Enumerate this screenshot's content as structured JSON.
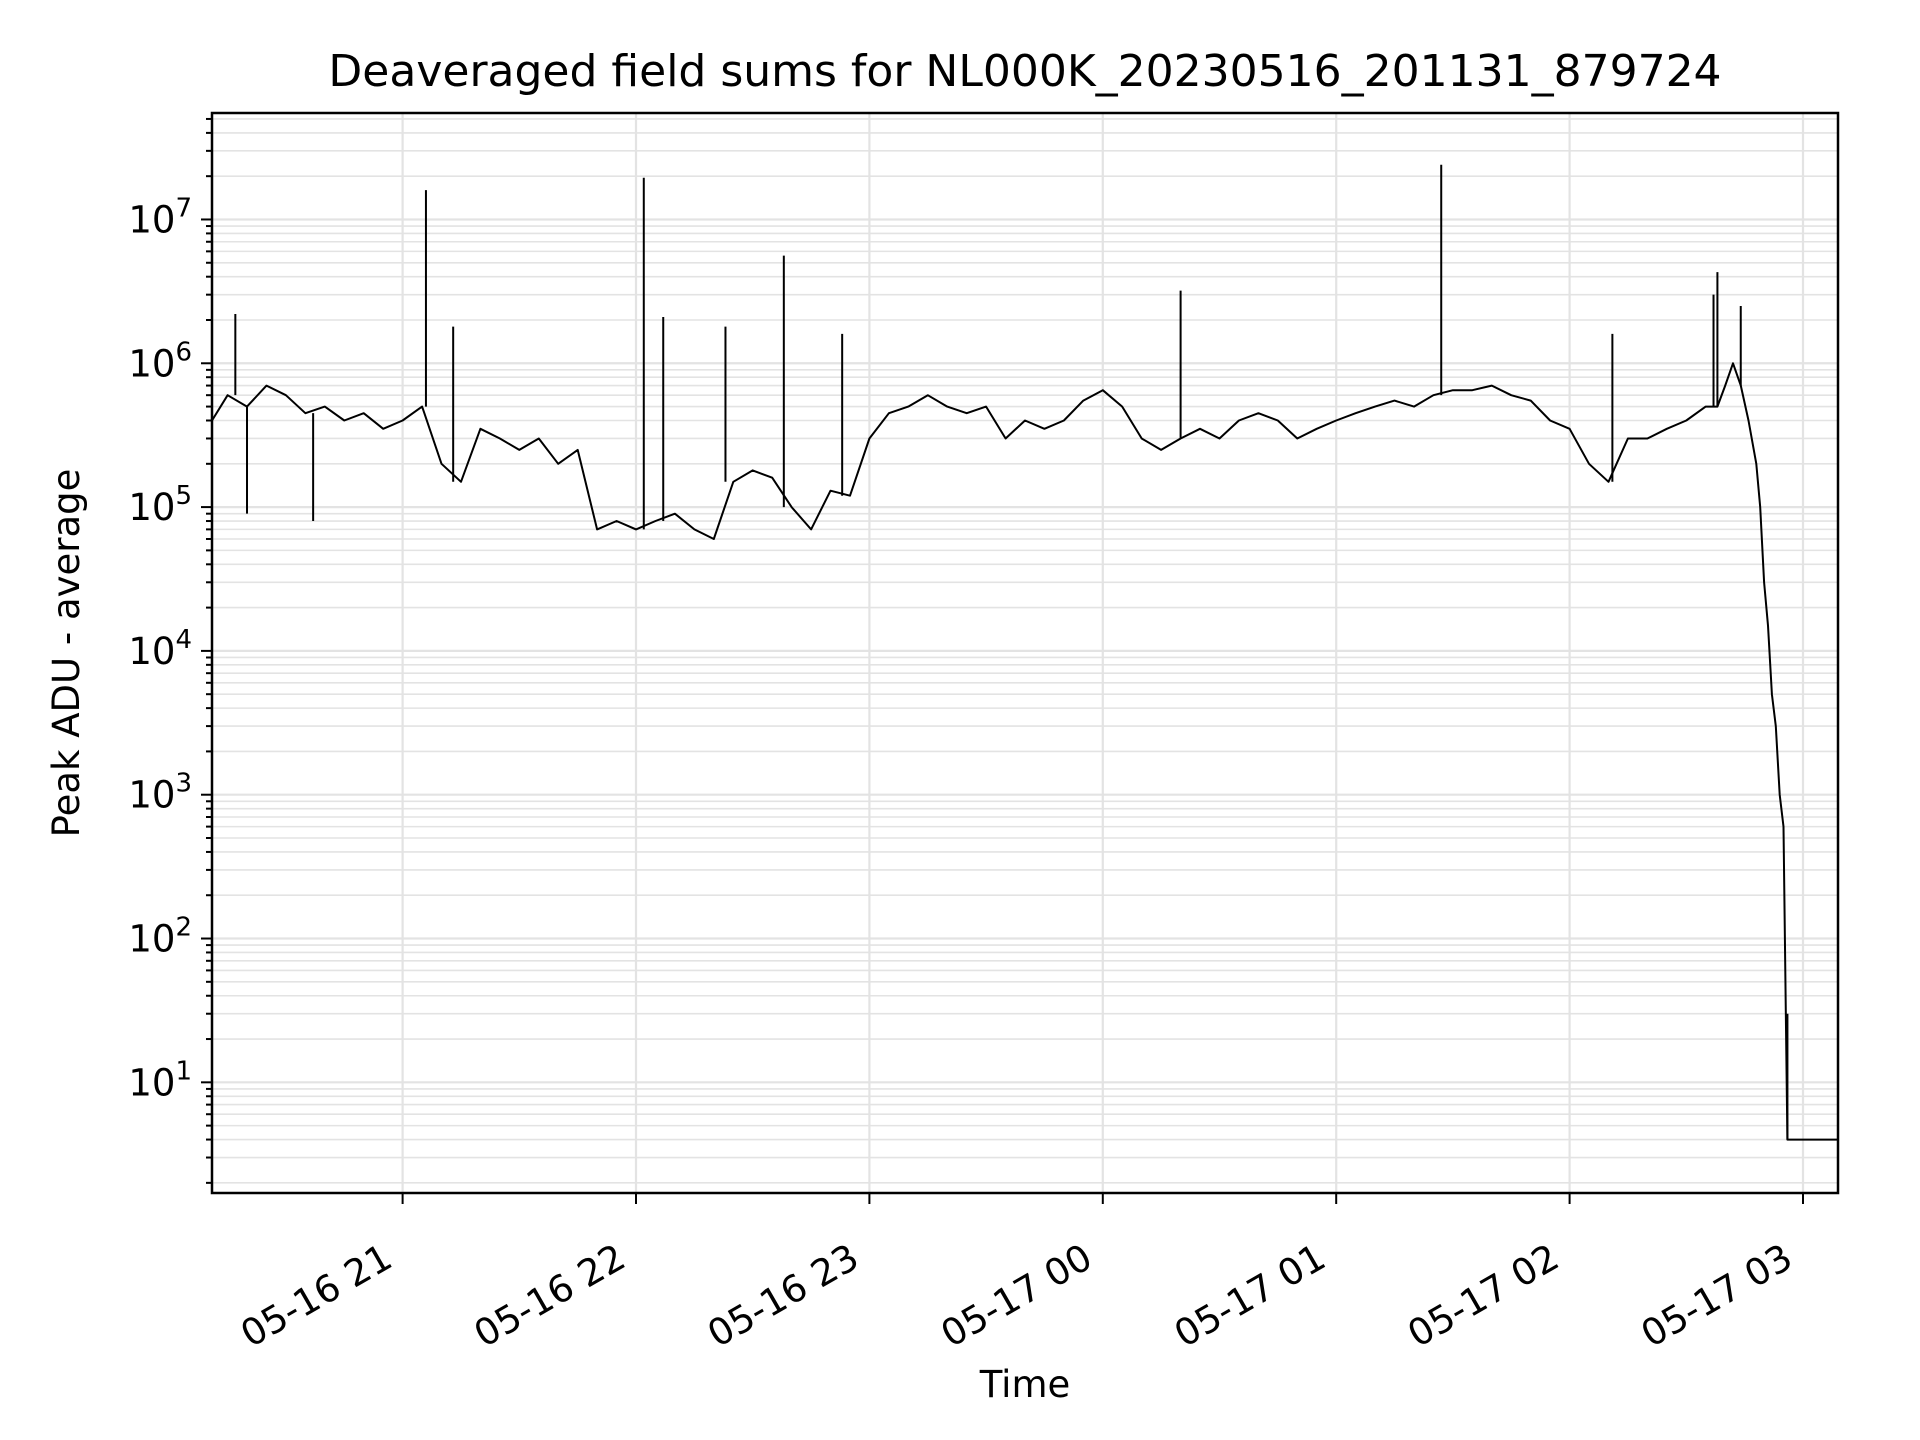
{
  "chart_data": {
    "type": "line",
    "title": "Deaveraged field sums for NL000K_20230516_201131_879724",
    "xlabel": "Time",
    "ylabel": "Peak ADU - average",
    "yscale": "log",
    "grid": true,
    "line_color": "#000000",
    "grid_color": "#e3e3e3",
    "xlim": [
      "2023-05-16 20:11",
      "2023-05-17 03:09"
    ],
    "ylim": [
      1.7,
      55000000
    ],
    "x_ticks": [
      "2023-05-16 21:00",
      "2023-05-16 22:00",
      "2023-05-16 23:00",
      "2023-05-17 00:00",
      "2023-05-17 01:00",
      "2023-05-17 02:00",
      "2023-05-17 03:00"
    ],
    "x_tick_labels": [
      "05-16 21",
      "05-16 22",
      "05-16 23",
      "05-17 00",
      "05-17 01",
      "05-17 02",
      "05-17 03"
    ],
    "y_ticks": [
      10,
      100,
      1000,
      10000,
      100000,
      1000000,
      10000000
    ],
    "y_tick_labels": [
      {
        "base": "10",
        "exp": "1"
      },
      {
        "base": "10",
        "exp": "2"
      },
      {
        "base": "10",
        "exp": "3"
      },
      {
        "base": "10",
        "exp": "4"
      },
      {
        "base": "10",
        "exp": "5"
      },
      {
        "base": "10",
        "exp": "6"
      },
      {
        "base": "10",
        "exp": "7"
      }
    ],
    "series": [
      {
        "x": [
          "2023-05-16 20:11",
          "2023-05-16 20:15",
          "2023-05-16 20:20",
          "2023-05-16 20:25",
          "2023-05-16 20:30",
          "2023-05-16 20:35",
          "2023-05-16 20:40",
          "2023-05-16 20:45",
          "2023-05-16 20:50",
          "2023-05-16 20:55",
          "2023-05-16 21:00",
          "2023-05-16 21:05",
          "2023-05-16 21:10",
          "2023-05-16 21:15",
          "2023-05-16 21:20",
          "2023-05-16 21:25",
          "2023-05-16 21:30",
          "2023-05-16 21:35",
          "2023-05-16 21:40",
          "2023-05-16 21:45",
          "2023-05-16 21:50",
          "2023-05-16 21:55",
          "2023-05-16 22:00",
          "2023-05-16 22:05",
          "2023-05-16 22:10",
          "2023-05-16 22:15",
          "2023-05-16 22:20",
          "2023-05-16 22:25",
          "2023-05-16 22:30",
          "2023-05-16 22:35",
          "2023-05-16 22:40",
          "2023-05-16 22:45",
          "2023-05-16 22:50",
          "2023-05-16 22:55",
          "2023-05-16 23:00",
          "2023-05-16 23:05",
          "2023-05-16 23:10",
          "2023-05-16 23:15",
          "2023-05-16 23:20",
          "2023-05-16 23:25",
          "2023-05-16 23:30",
          "2023-05-16 23:35",
          "2023-05-16 23:40",
          "2023-05-16 23:45",
          "2023-05-16 23:50",
          "2023-05-16 23:55",
          "2023-05-17 00:00",
          "2023-05-17 00:05",
          "2023-05-17 00:10",
          "2023-05-17 00:15",
          "2023-05-17 00:20",
          "2023-05-17 00:25",
          "2023-05-17 00:30",
          "2023-05-17 00:35",
          "2023-05-17 00:40",
          "2023-05-17 00:45",
          "2023-05-17 00:50",
          "2023-05-17 00:55",
          "2023-05-17 01:00",
          "2023-05-17 01:05",
          "2023-05-17 01:10",
          "2023-05-17 01:15",
          "2023-05-17 01:20",
          "2023-05-17 01:25",
          "2023-05-17 01:30",
          "2023-05-17 01:35",
          "2023-05-17 01:40",
          "2023-05-17 01:45",
          "2023-05-17 01:50",
          "2023-05-17 01:55",
          "2023-05-17 02:00",
          "2023-05-17 02:05",
          "2023-05-17 02:10",
          "2023-05-17 02:15",
          "2023-05-17 02:20",
          "2023-05-17 02:25",
          "2023-05-17 02:30",
          "2023-05-17 02:35",
          "2023-05-17 02:38",
          "2023-05-17 02:40",
          "2023-05-17 02:42",
          "2023-05-17 02:44",
          "2023-05-17 02:46",
          "2023-05-17 02:48",
          "2023-05-17 02:49",
          "2023-05-17 02:50",
          "2023-05-17 02:51",
          "2023-05-17 02:52",
          "2023-05-17 02:53",
          "2023-05-17 02:54",
          "2023-05-17 02:55",
          "2023-05-17 02:56",
          "2023-05-17 02:57",
          "2023-05-17 03:00",
          "2023-05-17 03:05",
          "2023-05-17 03:09"
        ],
        "y": [
          400000,
          600000,
          500000,
          700000,
          600000,
          450000,
          500000,
          400000,
          450000,
          350000,
          400000,
          500000,
          200000,
          150000,
          350000,
          300000,
          250000,
          300000,
          200000,
          250000,
          70000,
          80000,
          70000,
          80000,
          90000,
          70000,
          60000,
          150000,
          180000,
          160000,
          100000,
          70000,
          130000,
          120000,
          300000,
          450000,
          500000,
          600000,
          500000,
          450000,
          500000,
          300000,
          400000,
          350000,
          400000,
          550000,
          650000,
          500000,
          300000,
          250000,
          300000,
          350000,
          300000,
          400000,
          450000,
          400000,
          300000,
          350000,
          400000,
          450000,
          500000,
          550000,
          500000,
          600000,
          650000,
          650000,
          700000,
          600000,
          550000,
          400000,
          350000,
          200000,
          150000,
          300000,
          300000,
          350000,
          400000,
          500000,
          500000,
          700000,
          1000000,
          700000,
          400000,
          200000,
          100000,
          30000,
          15000,
          5000,
          3000,
          1000,
          600,
          4,
          4,
          4,
          4,
          4
        ]
      }
    ],
    "spikes": [
      {
        "x": "2023-05-16 20:17",
        "y": 2200000
      },
      {
        "x": "2023-05-16 20:20",
        "y": 90000
      },
      {
        "x": "2023-05-16 20:37",
        "y": 80000
      },
      {
        "x": "2023-05-16 21:06",
        "y": 16000000
      },
      {
        "x": "2023-05-16 21:13",
        "y": 1800000
      },
      {
        "x": "2023-05-16 22:02",
        "y": 19500000
      },
      {
        "x": "2023-05-16 22:07",
        "y": 2100000
      },
      {
        "x": "2023-05-16 22:23",
        "y": 1800000
      },
      {
        "x": "2023-05-16 22:38",
        "y": 5600000
      },
      {
        "x": "2023-05-16 22:53",
        "y": 1600000
      },
      {
        "x": "2023-05-17 00:20",
        "y": 3200000
      },
      {
        "x": "2023-05-17 01:27",
        "y": 24000000
      },
      {
        "x": "2023-05-17 02:11",
        "y": 1600000
      },
      {
        "x": "2023-05-17 02:37",
        "y": 3000000
      },
      {
        "x": "2023-05-17 02:38",
        "y": 4300000
      },
      {
        "x": "2023-05-17 02:44",
        "y": 2500000
      },
      {
        "x": "2023-05-17 02:56",
        "y": 30
      }
    ]
  }
}
